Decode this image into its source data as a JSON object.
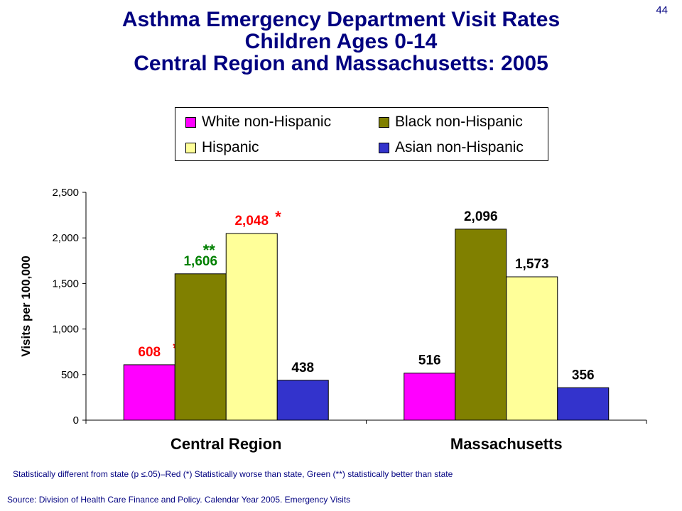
{
  "page_number": "44",
  "title_lines": [
    "Asthma Emergency Department Visit Rates",
    "Children Ages 0-14",
    "Central Region and Massachusetts: 2005"
  ],
  "footnote": "Statistically different from state (p ≤.05)–Red (*) Statistically worse than state, Green (**) statistically better than state",
  "source": "Source: Division of Health Care Finance and Policy. Calendar Year 2005. Emergency Visits",
  "colors": {
    "white_non_hispanic": "#ff00ff",
    "black_non_hispanic": "#808000",
    "hispanic": "#ffff99",
    "asian_non_hispanic": "#3333cc",
    "worse_than_state": "#ff0000",
    "better_than_state": "#008000",
    "title": "#000080"
  },
  "chart_data": {
    "type": "bar",
    "title": "Asthma Emergency Department Visit Rates Children Ages 0-14 Central Region and Massachusetts: 2005",
    "xlabel": "",
    "ylabel": "Visits per 100,000",
    "ylim": [
      0,
      2500
    ],
    "y_ticks": [
      0,
      500,
      1000,
      1500,
      2000,
      2500
    ],
    "y_tick_labels": [
      "0",
      "500",
      "1,000",
      "1,500",
      "2,000",
      "2,500"
    ],
    "grid": false,
    "legend_position": "top-right",
    "categories": [
      "Central Region",
      "Massachusetts"
    ],
    "series": [
      {
        "name": "White non-Hispanic",
        "color": "#ff00ff",
        "values": [
          608,
          516
        ],
        "labels": [
          "608",
          "516"
        ],
        "markers": [
          "*",
          ""
        ],
        "label_colors": [
          "#ff0000",
          "#000000"
        ]
      },
      {
        "name": "Black non-Hispanic",
        "color": "#808000",
        "values": [
          1606,
          2096
        ],
        "labels": [
          "1,606",
          "2,096"
        ],
        "markers": [
          "**",
          ""
        ],
        "label_colors": [
          "#008000",
          "#000000"
        ]
      },
      {
        "name": "Hispanic",
        "color": "#ffff99",
        "values": [
          2048,
          1573
        ],
        "labels": [
          "2,048",
          "1,573"
        ],
        "markers": [
          "*",
          ""
        ],
        "label_colors": [
          "#ff0000",
          "#000000"
        ]
      },
      {
        "name": "Asian non-Hispanic",
        "color": "#3333cc",
        "values": [
          438,
          356
        ],
        "labels": [
          "438",
          "356"
        ],
        "markers": [
          "",
          ""
        ],
        "label_colors": [
          "#000000",
          "#000000"
        ]
      }
    ]
  }
}
